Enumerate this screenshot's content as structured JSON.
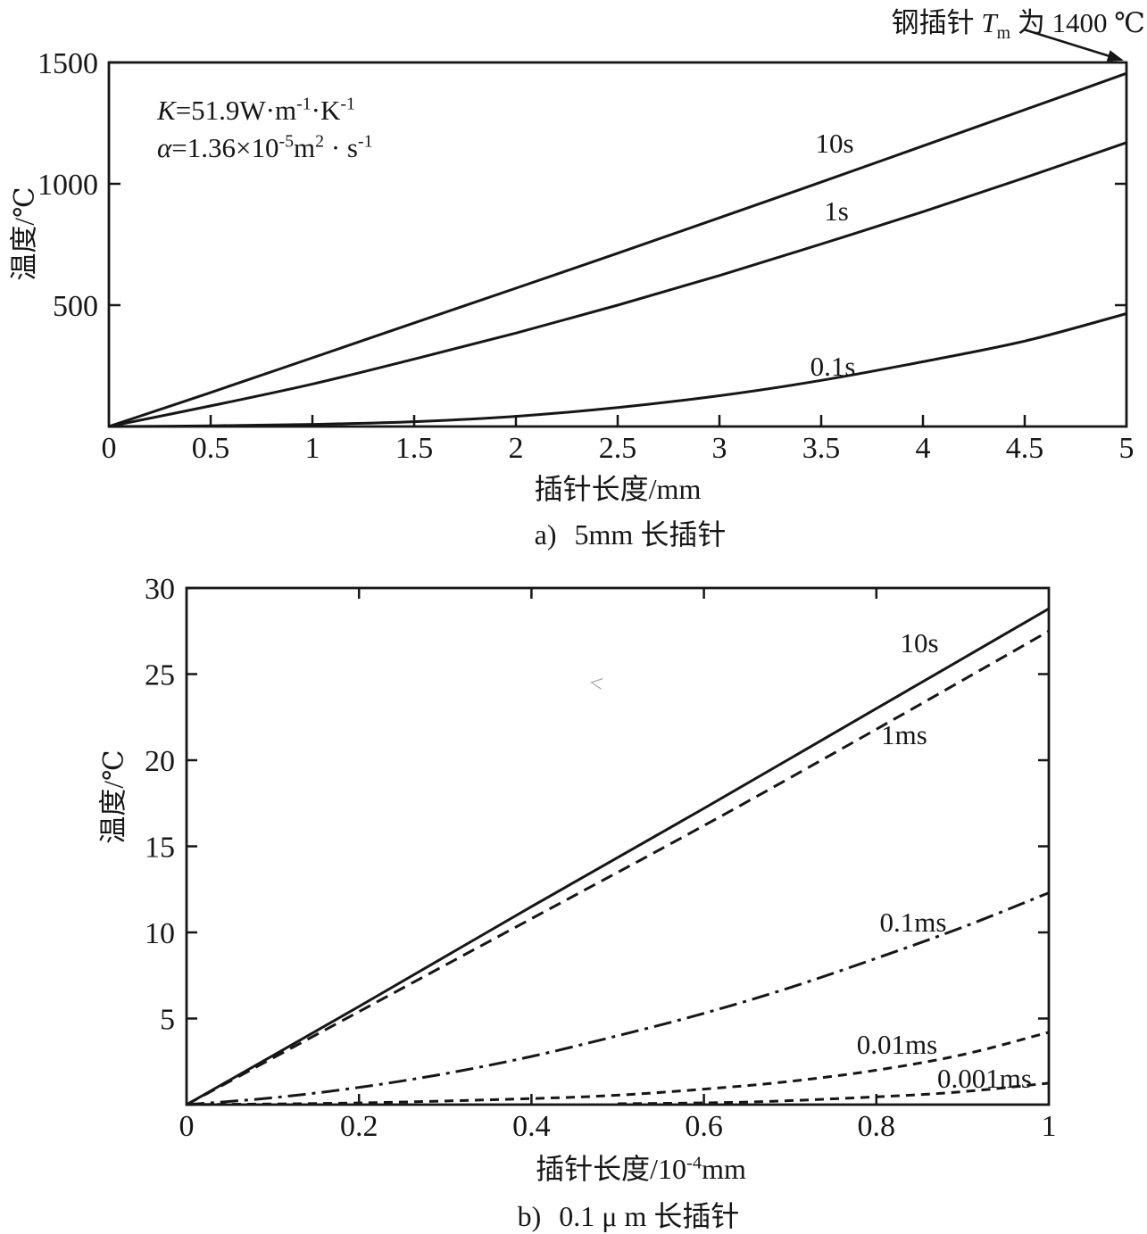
{
  "figure": {
    "background": "#ffffff",
    "ink": "#161616"
  },
  "chart_data": [
    {
      "type": "line",
      "caption_label": "a)",
      "caption_text": "5mm 长插针",
      "xlabel": "插针长度/mm",
      "ylabel": "温度/℃",
      "xlim": [
        0,
        5
      ],
      "ylim": [
        0,
        1500
      ],
      "grid": false,
      "x_ticks": [
        0,
        0.5,
        1,
        1.5,
        2,
        2.5,
        3,
        3.5,
        4,
        4.5,
        5
      ],
      "x_tick_labels": [
        "0",
        "0.5",
        "1",
        "1.5",
        "2",
        "2.5",
        "3",
        "3.5",
        "4",
        "4.5",
        "5"
      ],
      "y_ticks": [
        500,
        1000,
        1500
      ],
      "y_tick_labels": [
        "500",
        "1000",
        "1500"
      ],
      "right_ticks": [
        500,
        1000
      ],
      "top_ticks": [],
      "annotation": {
        "pre": "钢插针 ",
        "var": "T",
        "sub": "m",
        "post": " 为 1400 ℃"
      },
      "formulas": {
        "k": {
          "var": "K",
          "body1": "=51.9W·m",
          "sup1": "-1",
          "body2": "·K",
          "sup2": "-1"
        },
        "alpha": {
          "var": "α",
          "body1": "=1.36×10",
          "sup1": "-5",
          "body2": "m",
          "sup2": "2",
          "body3": " · s",
          "sup3": "-1"
        }
      },
      "series": [
        {
          "name": "10s",
          "style": "solid",
          "points": [
            [
              0,
              0
            ],
            [
              0.5,
              140
            ],
            [
              1,
              283
            ],
            [
              1.5,
              427
            ],
            [
              2,
              570
            ],
            [
              2.5,
              714
            ],
            [
              3,
              860
            ],
            [
              3.5,
              1007
            ],
            [
              4,
              1156
            ],
            [
              4.5,
              1305
            ],
            [
              5,
              1455
            ]
          ]
        },
        {
          "name": "1s",
          "style": "solid",
          "points": [
            [
              0,
              0
            ],
            [
              0.5,
              85
            ],
            [
              1,
              175
            ],
            [
              1.5,
              278
            ],
            [
              2,
              385
            ],
            [
              2.5,
              500
            ],
            [
              3,
              622
            ],
            [
              3.5,
              752
            ],
            [
              4,
              885
            ],
            [
              4.5,
              1025
            ],
            [
              5,
              1170
            ]
          ]
        },
        {
          "name": "0.1s",
          "style": "solid",
          "points": [
            [
              0,
              0
            ],
            [
              0.5,
              3
            ],
            [
              1,
              9
            ],
            [
              1.5,
              20
            ],
            [
              2,
              42
            ],
            [
              2.5,
              78
            ],
            [
              3,
              127
            ],
            [
              3.5,
              190
            ],
            [
              4,
              267
            ],
            [
              4.5,
              352
            ],
            [
              5,
              465
            ]
          ]
        }
      ]
    },
    {
      "type": "line",
      "caption_label": "b)",
      "caption_text": "0.1 μ m 长插针",
      "xlabel_main": "插针长度/10",
      "xlabel_sup": "-4",
      "xlabel_unit": "mm",
      "ylabel": "温度/℃",
      "xlim": [
        0,
        1
      ],
      "ylim": [
        0,
        30
      ],
      "grid": false,
      "x_ticks": [
        0,
        0.2,
        0.4,
        0.6,
        0.8,
        1
      ],
      "x_tick_labels": [
        "0",
        "0.2",
        "0.4",
        "0.6",
        "0.8",
        "1"
      ],
      "y_ticks": [
        5,
        10,
        15,
        20,
        25,
        30
      ],
      "y_tick_labels": [
        "5",
        "10",
        "15",
        "20",
        "25",
        "30"
      ],
      "right_ticks": [
        5,
        10,
        15,
        20,
        25
      ],
      "top_ticks": [
        0.2,
        0.4,
        0.6,
        0.8
      ],
      "artifact": "<",
      "series": [
        {
          "name": "10s",
          "style": "solid",
          "points": [
            [
              0,
              0
            ],
            [
              0.2,
              5.7
            ],
            [
              0.4,
              11.5
            ],
            [
              0.6,
              17.2
            ],
            [
              0.8,
              23.0
            ],
            [
              1,
              28.8
            ]
          ]
        },
        {
          "name": "1ms",
          "style": "dashed",
          "points": [
            [
              0,
              0
            ],
            [
              0.2,
              5.4
            ],
            [
              0.4,
              10.8
            ],
            [
              0.6,
              16.2
            ],
            [
              0.8,
              21.8
            ],
            [
              1,
              27.5
            ]
          ]
        },
        {
          "name": "0.1ms",
          "style": "dashdot",
          "points": [
            [
              0,
              0
            ],
            [
              0.1,
              0.4
            ],
            [
              0.2,
              1.0
            ],
            [
              0.3,
              1.8
            ],
            [
              0.4,
              2.8
            ],
            [
              0.5,
              4.0
            ],
            [
              0.6,
              5.3
            ],
            [
              0.7,
              6.8
            ],
            [
              0.8,
              8.5
            ],
            [
              0.9,
              10.3
            ],
            [
              1,
              12.3
            ]
          ]
        },
        {
          "name": "0.01ms",
          "style": "dashed-short",
          "points": [
            [
              0,
              0
            ],
            [
              0.2,
              0.1
            ],
            [
              0.4,
              0.35
            ],
            [
              0.5,
              0.55
            ],
            [
              0.6,
              0.9
            ],
            [
              0.7,
              1.35
            ],
            [
              0.8,
              2.0
            ],
            [
              0.9,
              2.9
            ],
            [
              1,
              4.2
            ]
          ]
        },
        {
          "name": "0.001ms",
          "style": "dashed-short",
          "points": [
            [
              0.5,
              0.05
            ],
            [
              0.65,
              0.15
            ],
            [
              0.8,
              0.45
            ],
            [
              0.9,
              0.75
            ],
            [
              1,
              1.25
            ]
          ]
        }
      ]
    }
  ]
}
